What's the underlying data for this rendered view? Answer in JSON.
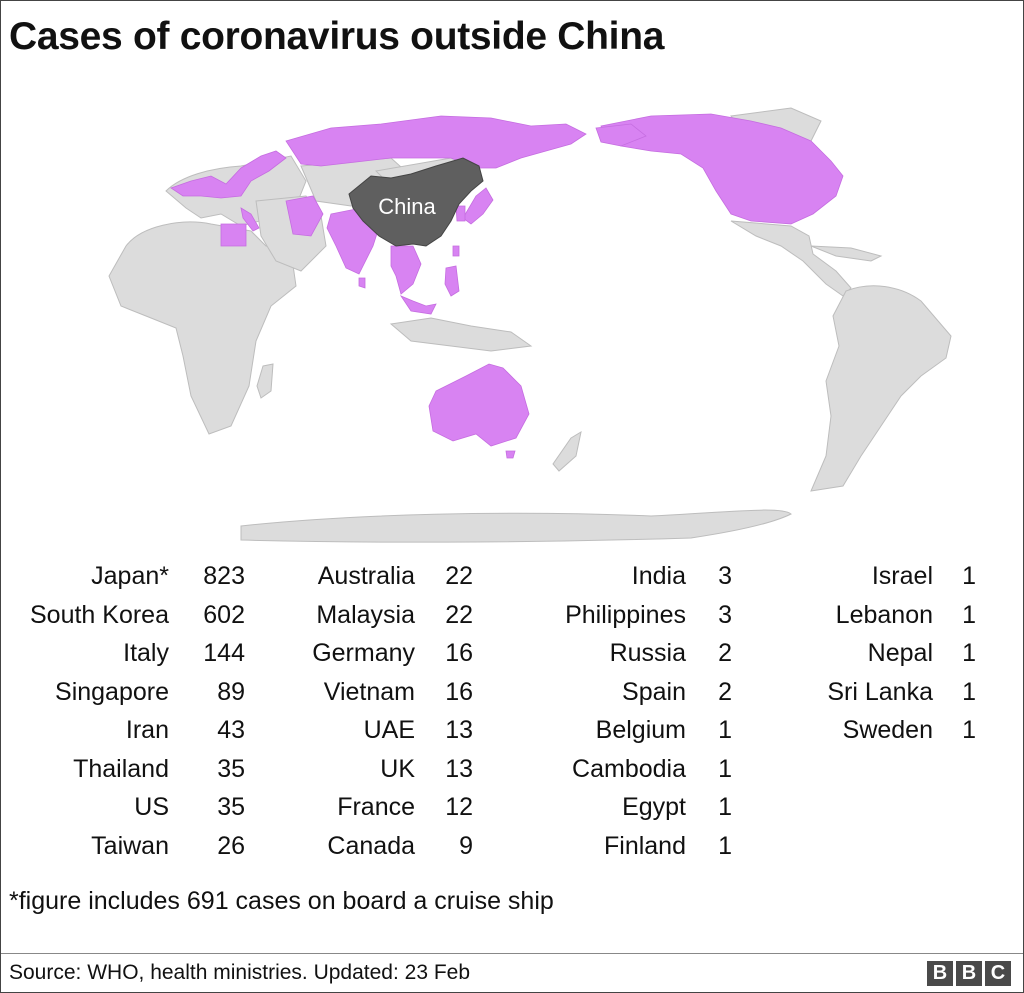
{
  "title": "Cases of coronavirus outside China",
  "map": {
    "label": "China",
    "colors": {
      "land": "#dcdcdc",
      "border": "#bdbdbd",
      "affected": "#d883f2",
      "china": "#5f5f5f",
      "china_label": "#ffffff"
    },
    "affected_regions": [
      "Canada",
      "US",
      "Russia",
      "Nordic/European countries",
      "Egypt",
      "Middle East",
      "India",
      "Southeast Asia",
      "Japan",
      "South Korea",
      "Taiwan",
      "Australia"
    ]
  },
  "table": {
    "columns": [
      [
        {
          "country": "Japan*",
          "cases": "823"
        },
        {
          "country": "South Korea",
          "cases": "602"
        },
        {
          "country": "Italy",
          "cases": "144"
        },
        {
          "country": "Singapore",
          "cases": "89"
        },
        {
          "country": "Iran",
          "cases": "43"
        },
        {
          "country": "Thailand",
          "cases": "35"
        },
        {
          "country": "US",
          "cases": "35"
        },
        {
          "country": "Taiwan",
          "cases": "26"
        }
      ],
      [
        {
          "country": "Australia",
          "cases": "22"
        },
        {
          "country": "Malaysia",
          "cases": "22"
        },
        {
          "country": "Germany",
          "cases": "16"
        },
        {
          "country": "Vietnam",
          "cases": "16"
        },
        {
          "country": "UAE",
          "cases": "13"
        },
        {
          "country": "UK",
          "cases": "13"
        },
        {
          "country": "France",
          "cases": "12"
        },
        {
          "country": "Canada",
          "cases": "9"
        }
      ],
      [
        {
          "country": "India",
          "cases": "3"
        },
        {
          "country": "Philippines",
          "cases": "3"
        },
        {
          "country": "Russia",
          "cases": "2"
        },
        {
          "country": "Spain",
          "cases": "2"
        },
        {
          "country": "Belgium",
          "cases": "1"
        },
        {
          "country": "Cambodia",
          "cases": "1"
        },
        {
          "country": "Egypt",
          "cases": "1"
        },
        {
          "country": "Finland",
          "cases": "1"
        }
      ],
      [
        {
          "country": "Israel",
          "cases": "1"
        },
        {
          "country": "Lebanon",
          "cases": "1"
        },
        {
          "country": "Nepal",
          "cases": "1"
        },
        {
          "country": "Sri Lanka",
          "cases": "1"
        },
        {
          "country": "Sweden",
          "cases": "1"
        }
      ]
    ]
  },
  "footnote": "*figure includes 691 cases on board a cruise ship",
  "source": "Source: WHO, health ministries. Updated: 23 Feb",
  "logo": [
    "B",
    "B",
    "C"
  ]
}
